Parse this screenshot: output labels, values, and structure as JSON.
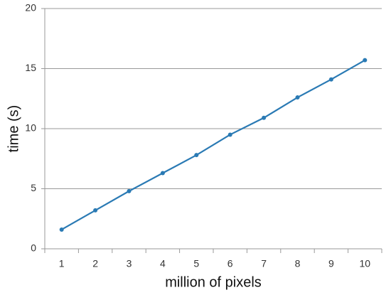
{
  "chart_data": {
    "type": "line",
    "x_label": "million of pixels",
    "y_label": "time (s)",
    "categories": [
      "1",
      "2",
      "3",
      "4",
      "5",
      "6",
      "7",
      "8",
      "9",
      "10"
    ],
    "series": [
      {
        "name": "time",
        "color": "#2a7ab4",
        "values": [
          1.6,
          3.2,
          4.8,
          6.3,
          7.8,
          9.5,
          10.9,
          12.6,
          14.1,
          15.7
        ]
      }
    ],
    "ylim": [
      0,
      20
    ],
    "yticks": [
      0,
      5,
      10,
      15,
      20
    ],
    "grid": true
  }
}
